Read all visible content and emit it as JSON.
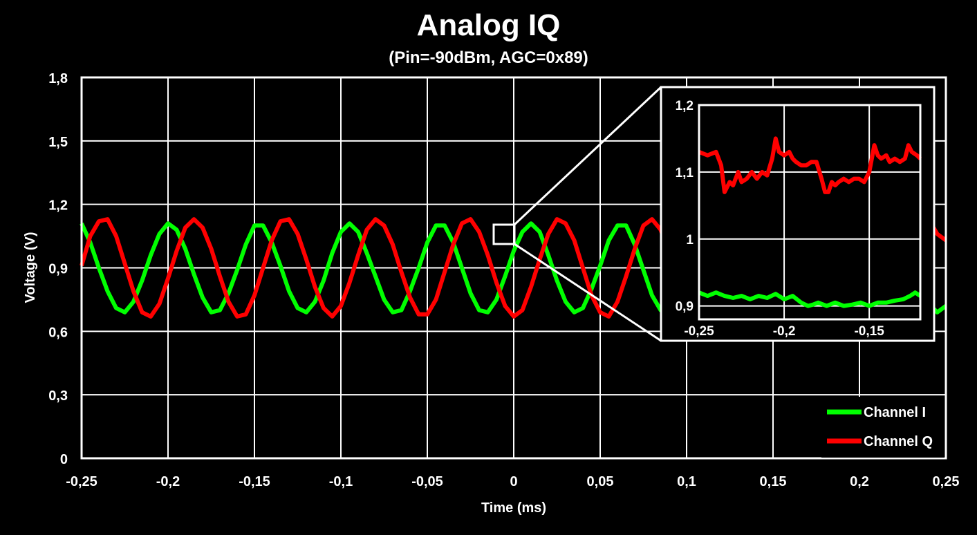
{
  "chart_data": {
    "type": "line",
    "title": "Analog IQ",
    "subtitle": "(Pin=-90dBm, AGC=0x89)",
    "xlabel": "Time (ms)",
    "ylabel": "Voltage (V)",
    "xlim": [
      -0.25,
      0.25
    ],
    "ylim": [
      0,
      1.8
    ],
    "xticks": [
      -0.25,
      -0.2,
      -0.15,
      -0.1,
      -0.05,
      0,
      0.05,
      0.1,
      0.15,
      0.2,
      0.25
    ],
    "xtick_labels": [
      "-0,25",
      "-0,2",
      "-0,15",
      "-0,1",
      "-0,05",
      "0",
      "0,05",
      "0,1",
      "0,15",
      "0,2",
      "0,25"
    ],
    "yticks": [
      0,
      0.3,
      0.6,
      0.9,
      1.2,
      1.5,
      1.8
    ],
    "ytick_labels": [
      "0",
      "0,3",
      "0,6",
      "0,9",
      "1,2",
      "1,5",
      "1,8"
    ],
    "grid": true,
    "legend_position": "bottom-right",
    "series": [
      {
        "name": "Channel I",
        "color": "#00ff00",
        "x": [
          -0.25,
          -0.245,
          -0.24,
          -0.235,
          -0.23,
          -0.225,
          -0.22,
          -0.215,
          -0.21,
          -0.205,
          -0.2,
          -0.195,
          -0.19,
          -0.185,
          -0.18,
          -0.175,
          -0.17,
          -0.165,
          -0.16,
          -0.155,
          -0.15,
          -0.145,
          -0.14,
          -0.135,
          -0.13,
          -0.125,
          -0.12,
          -0.115,
          -0.11,
          -0.105,
          -0.1,
          -0.095,
          -0.09,
          -0.085,
          -0.08,
          -0.075,
          -0.07,
          -0.065,
          -0.06,
          -0.055,
          -0.05,
          -0.045,
          -0.04,
          -0.035,
          -0.03,
          -0.025,
          -0.02,
          -0.015,
          -0.01,
          -0.005,
          0,
          0.005,
          0.01,
          0.015,
          0.02,
          0.025,
          0.03,
          0.035,
          0.04,
          0.045,
          0.05,
          0.055,
          0.06,
          0.065,
          0.07,
          0.075,
          0.08,
          0.085,
          0.09,
          0.095,
          0.1,
          0.105,
          0.11,
          0.115,
          0.12,
          0.125,
          0.13,
          0.135,
          0.14,
          0.145,
          0.15,
          0.155,
          0.16,
          0.165,
          0.17,
          0.175,
          0.18,
          0.185,
          0.19,
          0.195,
          0.2,
          0.205,
          0.21,
          0.215,
          0.22,
          0.225,
          0.23,
          0.235,
          0.24,
          0.245,
          0.25
        ],
        "y": [
          1.11,
          1.02,
          0.9,
          0.79,
          0.71,
          0.69,
          0.74,
          0.84,
          0.96,
          1.06,
          1.11,
          1.08,
          0.99,
          0.87,
          0.76,
          0.69,
          0.7,
          0.78,
          0.89,
          1.01,
          1.1,
          1.1,
          1.02,
          0.91,
          0.79,
          0.71,
          0.69,
          0.74,
          0.84,
          0.97,
          1.07,
          1.11,
          1.07,
          0.97,
          0.86,
          0.75,
          0.69,
          0.7,
          0.79,
          0.9,
          1.02,
          1.1,
          1.1,
          1.02,
          0.9,
          0.78,
          0.7,
          0.69,
          0.75,
          0.86,
          0.98,
          1.07,
          1.11,
          1.07,
          0.96,
          0.84,
          0.74,
          0.69,
          0.71,
          0.8,
          0.91,
          1.03,
          1.1,
          1.1,
          1.01,
          0.89,
          0.77,
          0.7,
          0.7,
          0.76,
          0.87,
          0.99,
          1.08,
          1.11,
          1.06,
          0.95,
          0.83,
          0.73,
          0.69,
          0.72,
          0.81,
          0.93,
          1.04,
          1.1,
          1.09,
          1,
          0.88,
          0.77,
          0.7,
          0.7,
          0.77,
          0.88,
          1,
          1.09,
          1.1,
          1.05,
          0.94,
          0.82,
          0.73,
          0.69,
          0.72
        ]
      },
      {
        "name": "Channel Q",
        "color": "#ff0000",
        "x": [
          -0.25,
          -0.245,
          -0.24,
          -0.235,
          -0.23,
          -0.225,
          -0.22,
          -0.215,
          -0.21,
          -0.205,
          -0.2,
          -0.195,
          -0.19,
          -0.185,
          -0.18,
          -0.175,
          -0.17,
          -0.165,
          -0.16,
          -0.155,
          -0.15,
          -0.145,
          -0.14,
          -0.135,
          -0.13,
          -0.125,
          -0.12,
          -0.115,
          -0.11,
          -0.105,
          -0.1,
          -0.095,
          -0.09,
          -0.085,
          -0.08,
          -0.075,
          -0.07,
          -0.065,
          -0.06,
          -0.055,
          -0.05,
          -0.045,
          -0.04,
          -0.035,
          -0.03,
          -0.025,
          -0.02,
          -0.015,
          -0.01,
          -0.005,
          0,
          0.005,
          0.01,
          0.015,
          0.02,
          0.025,
          0.03,
          0.035,
          0.04,
          0.045,
          0.05,
          0.055,
          0.06,
          0.065,
          0.07,
          0.075,
          0.08,
          0.085,
          0.09,
          0.095,
          0.1,
          0.105,
          0.11,
          0.115,
          0.12,
          0.125,
          0.13,
          0.135,
          0.14,
          0.145,
          0.15,
          0.155,
          0.16,
          0.165,
          0.17,
          0.175,
          0.18,
          0.185,
          0.19,
          0.195,
          0.2,
          0.205,
          0.21,
          0.215,
          0.22,
          0.225,
          0.23,
          0.235,
          0.24,
          0.245,
          0.25
        ],
        "y": [
          0.91,
          1.05,
          1.12,
          1.13,
          1.05,
          0.92,
          0.79,
          0.69,
          0.67,
          0.73,
          0.85,
          0.98,
          1.09,
          1.13,
          1.09,
          0.99,
          0.86,
          0.74,
          0.67,
          0.68,
          0.77,
          0.9,
          1.03,
          1.12,
          1.13,
          1.06,
          0.94,
          0.81,
          0.71,
          0.67,
          0.72,
          0.83,
          0.96,
          1.08,
          1.13,
          1.1,
          1.01,
          0.88,
          0.76,
          0.68,
          0.68,
          0.75,
          0.88,
          1.01,
          1.11,
          1.13,
          1.07,
          0.96,
          0.83,
          0.72,
          0.67,
          0.7,
          0.81,
          0.94,
          1.06,
          1.13,
          1.11,
          1.03,
          0.9,
          0.77,
          0.69,
          0.67,
          0.74,
          0.86,
          0.99,
          1.1,
          1.13,
          1.08,
          0.97,
          0.85,
          0.73,
          0.67,
          0.69,
          0.79,
          0.91,
          1.04,
          1.12,
          1.12,
          1.04,
          0.92,
          0.79,
          0.7,
          0.67,
          0.73,
          0.84,
          0.97,
          1.09,
          1.13,
          1.09,
          0.99,
          0.86,
          0.75,
          0.68,
          0.68,
          0.77,
          0.89,
          1.02,
          1.12,
          1.13,
          1.06,
          1.03
        ]
      }
    ],
    "inset": {
      "xlim": [
        -0.25,
        -0.12
      ],
      "ylim": [
        0.88,
        1.2
      ],
      "xticks": [
        -0.25,
        -0.2,
        -0.15
      ],
      "xtick_labels": [
        "-0,25",
        "-0,2",
        "-0,15"
      ],
      "yticks": [
        0.9,
        1,
        1.1,
        1.2
      ],
      "ytick_labels": [
        "0,9",
        "1",
        "1,1",
        "1,2"
      ],
      "series": [
        {
          "name": "Channel Q",
          "x": [
            -0.25,
            -0.245,
            -0.24,
            -0.237,
            -0.235,
            -0.232,
            -0.23,
            -0.227,
            -0.225,
            -0.222,
            -0.219,
            -0.216,
            -0.213,
            -0.21,
            -0.207,
            -0.205,
            -0.203,
            -0.2,
            -0.197,
            -0.195,
            -0.193,
            -0.19,
            -0.187,
            -0.184,
            -0.181,
            -0.178,
            -0.176,
            -0.174,
            -0.172,
            -0.17,
            -0.168,
            -0.165,
            -0.162,
            -0.159,
            -0.156,
            -0.153,
            -0.15,
            -0.147,
            -0.145,
            -0.143,
            -0.14,
            -0.138,
            -0.135,
            -0.132,
            -0.129,
            -0.127,
            -0.125,
            -0.122,
            -0.12
          ],
          "y": [
            1.13,
            1.125,
            1.13,
            1.11,
            1.07,
            1.085,
            1.08,
            1.1,
            1.085,
            1.09,
            1.1,
            1.09,
            1.1,
            1.095,
            1.12,
            1.15,
            1.13,
            1.125,
            1.13,
            1.12,
            1.115,
            1.11,
            1.11,
            1.115,
            1.115,
            1.09,
            1.07,
            1.07,
            1.085,
            1.08,
            1.085,
            1.09,
            1.085,
            1.09,
            1.09,
            1.085,
            1.1,
            1.14,
            1.125,
            1.12,
            1.125,
            1.115,
            1.12,
            1.115,
            1.12,
            1.14,
            1.13,
            1.125,
            1.12
          ]
        },
        {
          "name": "Channel I",
          "x": [
            -0.25,
            -0.245,
            -0.24,
            -0.235,
            -0.23,
            -0.225,
            -0.22,
            -0.215,
            -0.21,
            -0.205,
            -0.2,
            -0.195,
            -0.19,
            -0.186,
            -0.183,
            -0.18,
            -0.175,
            -0.17,
            -0.165,
            -0.16,
            -0.155,
            -0.15,
            -0.145,
            -0.14,
            -0.135,
            -0.13,
            -0.126,
            -0.123,
            -0.12
          ],
          "y": [
            0.92,
            0.915,
            0.92,
            0.915,
            0.912,
            0.915,
            0.91,
            0.915,
            0.912,
            0.918,
            0.91,
            0.915,
            0.905,
            0.9,
            0.902,
            0.905,
            0.9,
            0.905,
            0.9,
            0.902,
            0.905,
            0.9,
            0.905,
            0.905,
            0.908,
            0.91,
            0.915,
            0.92,
            0.915
          ]
        }
      ]
    }
  }
}
